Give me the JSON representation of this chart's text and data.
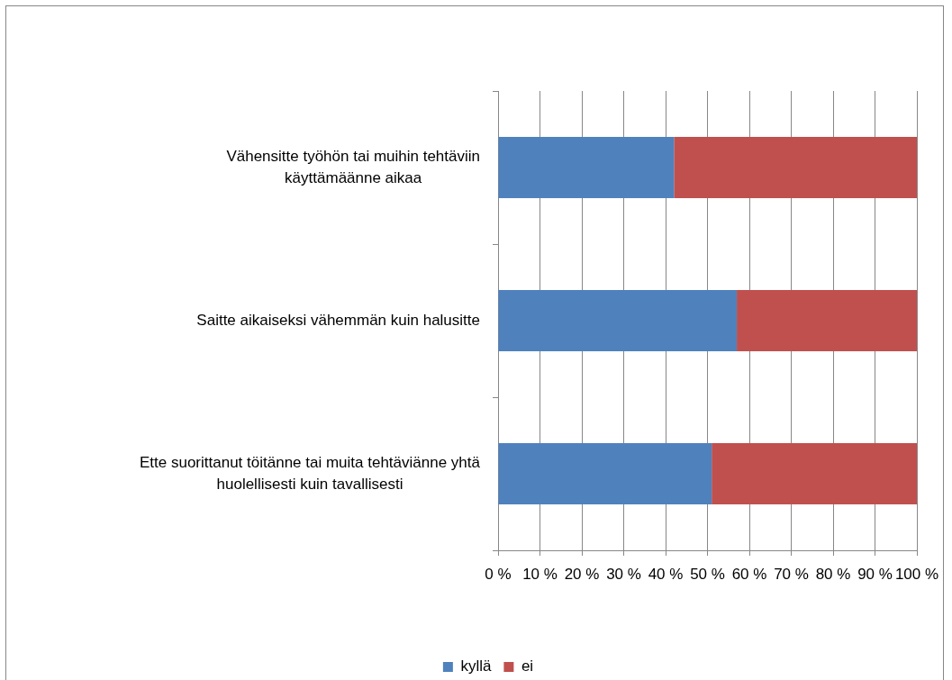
{
  "chart_data": {
    "type": "bar",
    "orientation": "horizontal",
    "stacked": true,
    "categories": [
      "Vähensitte työhön tai muihin tehtäviin käyttämäänne aikaa",
      "Saitte aikaiseksi vähemmän kuin halusitte",
      "Ette suorittanut töitänne tai muita tehtäviänne yhtä huolellisesti kuin tavallisesti"
    ],
    "series": [
      {
        "name": "kyllä",
        "color": "#4f81bd",
        "values": [
          42,
          57,
          51
        ]
      },
      {
        "name": "ei",
        "color": "#c0504d",
        "values": [
          58,
          43,
          49
        ]
      }
    ],
    "xlim": [
      0,
      100
    ],
    "xticks": [
      {
        "value": 0,
        "label": "0 %"
      },
      {
        "value": 10,
        "label": "10 %"
      },
      {
        "value": 20,
        "label": "20 %"
      },
      {
        "value": 30,
        "label": "30 %"
      },
      {
        "value": 40,
        "label": "40 %"
      },
      {
        "value": 50,
        "label": "50 %"
      },
      {
        "value": 60,
        "label": "60 %"
      },
      {
        "value": 70,
        "label": "70 %"
      },
      {
        "value": 80,
        "label": "80 %"
      },
      {
        "value": 90,
        "label": "90 %"
      },
      {
        "value": 100,
        "label": "100 %"
      }
    ],
    "grid": "x",
    "legend": "bottom"
  }
}
